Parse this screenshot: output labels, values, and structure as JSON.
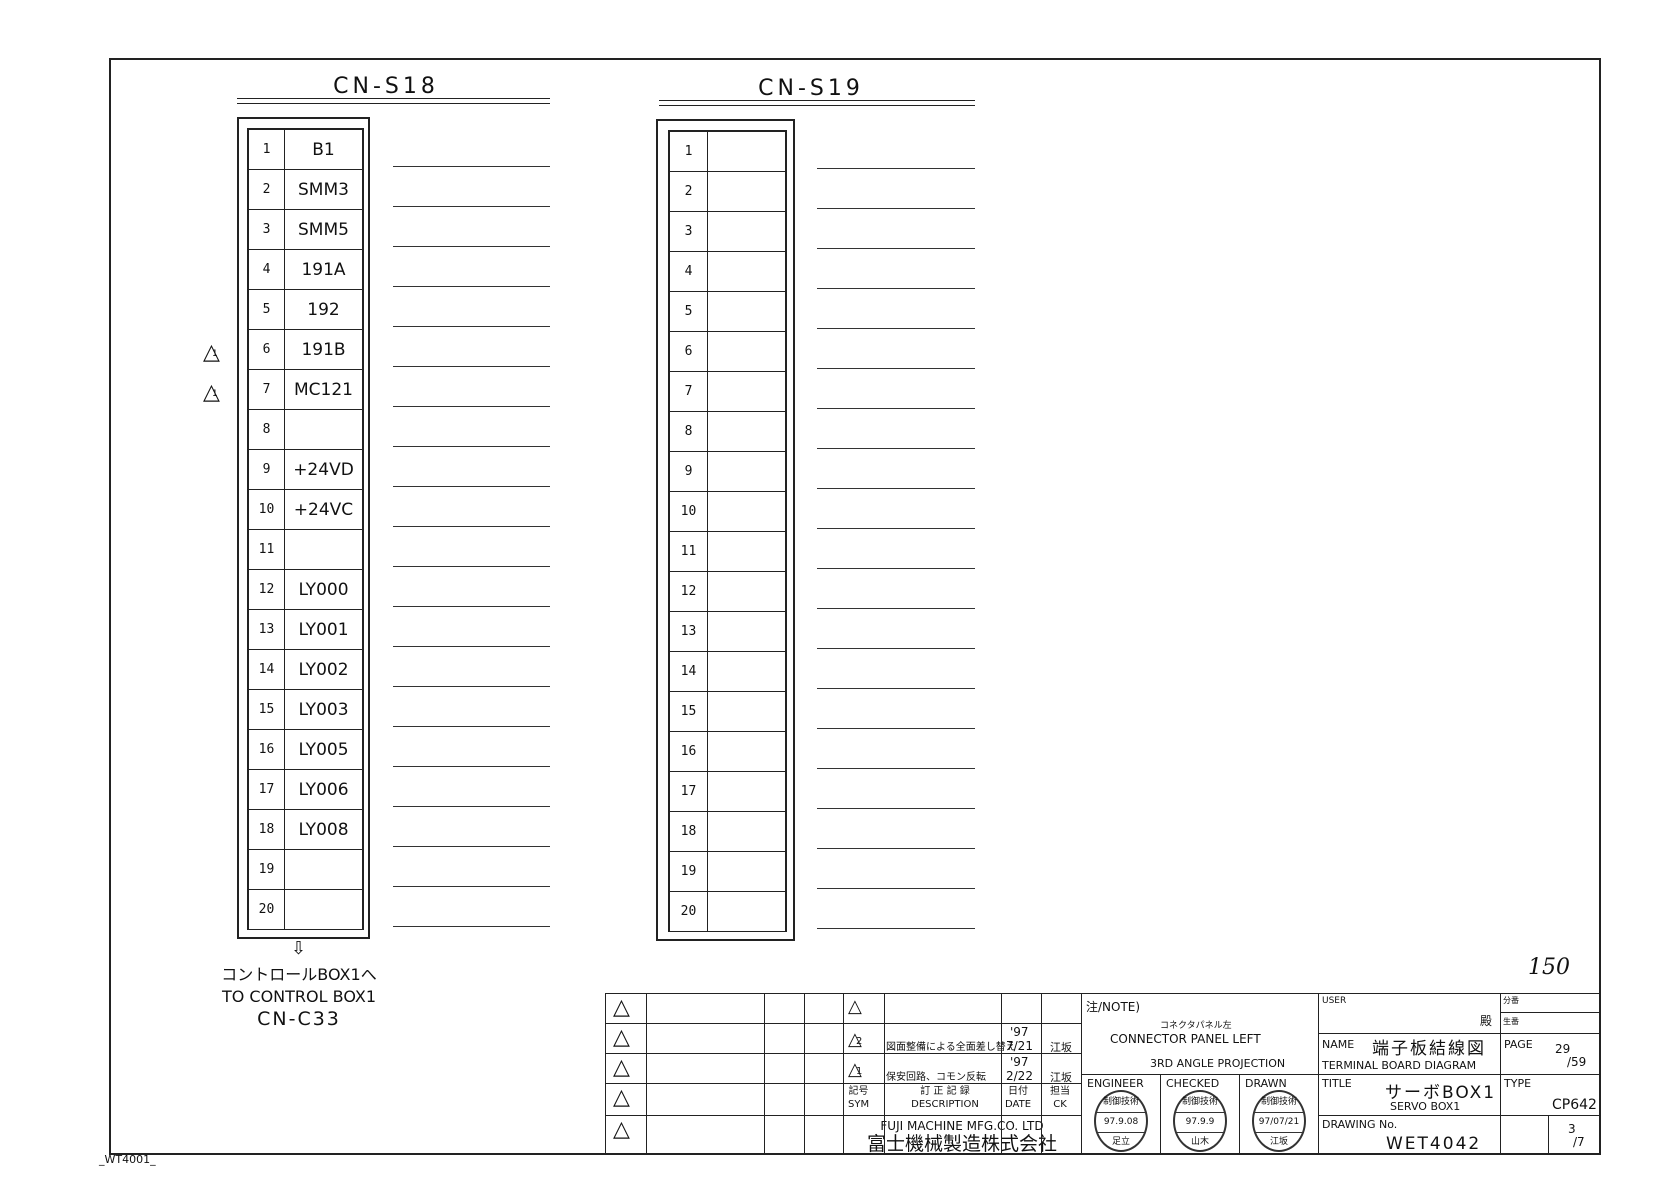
{
  "connectors": [
    {
      "name": "CN-S18",
      "pins": [
        "1",
        "2",
        "3",
        "4",
        "5",
        "6",
        "7",
        "8",
        "9",
        "10",
        "11",
        "12",
        "13",
        "14",
        "15",
        "16",
        "17",
        "18",
        "19",
        "20"
      ],
      "signals": [
        "B1",
        "SMM3",
        "SMM5",
        "191A",
        "192",
        "191B",
        "MC121",
        "",
        "+24VD",
        "+24VC",
        "",
        "LY000",
        "LY001",
        "LY002",
        "LY003",
        "LY005",
        "LY006",
        "LY008",
        "",
        ""
      ]
    },
    {
      "name": "CN-S19",
      "pins": [
        "1",
        "2",
        "3",
        "4",
        "5",
        "6",
        "7",
        "8",
        "9",
        "10",
        "11",
        "12",
        "13",
        "14",
        "15",
        "16",
        "17",
        "18",
        "19",
        "20"
      ],
      "signals": [
        "",
        "",
        "",
        "",
        "",
        "",
        "",
        "",
        "",
        "",
        "",
        "",
        "",
        "",
        "",
        "",
        "",
        "",
        "",
        ""
      ]
    }
  ],
  "revision_marks": [
    {
      "pin": "6",
      "mark": "1"
    },
    {
      "pin": "7",
      "mark": "1"
    }
  ],
  "destination": {
    "jp": "コントロールBOX1へ",
    "en": "TO CONTROL BOX1",
    "connector": "CN-C33"
  },
  "sheet_note": "150",
  "corner_code": "_WT4001_",
  "title_block": {
    "revisions": [
      {
        "sym": "2",
        "description": "図面整備による全面差し替え",
        "date_year": "'97",
        "date": "7/21",
        "ck": "江坂"
      },
      {
        "sym": "1",
        "description": "保安回路、コモン反転",
        "date_year": "'97",
        "date": "2/22",
        "ck": "江坂"
      }
    ],
    "headers": {
      "sym_jp": "記号",
      "sym": "SYM",
      "desc_jp": "訂 正 記 録",
      "desc": "DESCRIPTION",
      "date_jp": "日付",
      "date": "DATE",
      "ck_jp": "担当",
      "ck": "CK"
    },
    "company_en": "FUJI MACHINE MFG.CO. LTD",
    "company_jp": "富士機械製造株式会社",
    "note_label": "注/NOTE)",
    "note_jp": "コネクタパネル左",
    "note_en": "CONNECTOR PANEL LEFT",
    "projection": "3RD ANGLE PROJECTION",
    "engineer_label": "ENGINEER",
    "engineer_stamp": {
      "dept": "制御技術",
      "date": "97.9.08",
      "name": "足立"
    },
    "checked_label": "CHECKED",
    "checked_stamp": {
      "dept": "制御技術",
      "date": "97.9.9",
      "name": "山木"
    },
    "drawn_label": "DRAWN",
    "drawn_stamp": {
      "dept": "制御技術",
      "date": "97/07/21",
      "name": "江坂"
    },
    "user_label": "USER",
    "user_suffix": "殿",
    "bunban_label": "分番",
    "seiban_label": "生番",
    "name_label": "NAME",
    "name_jp": "端子板結線図",
    "name_en": "TERMINAL BOARD DIAGRAM",
    "page_label": "PAGE",
    "page": "29",
    "page_total": "59",
    "title_label": "TITLE",
    "title_jp": "サーボBOX1",
    "title_en": "SERVO BOX1",
    "type_label": "TYPE",
    "type": "CP642",
    "drawing_no_label": "DRAWING No.",
    "drawing_no": "WET4042",
    "sheet": "3",
    "sheet_total": "7"
  }
}
